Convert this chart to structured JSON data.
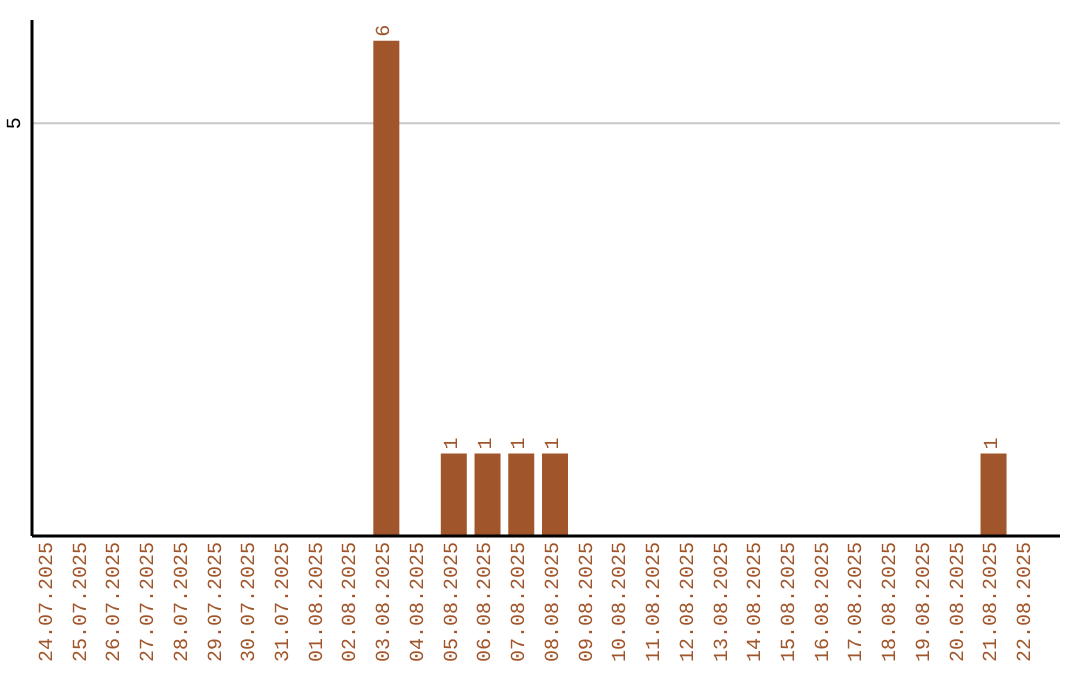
{
  "chart_data": {
    "type": "bar",
    "categories": [
      "24.07.2025",
      "25.07.2025",
      "26.07.2025",
      "27.07.2025",
      "28.07.2025",
      "29.07.2025",
      "30.07.2025",
      "31.07.2025",
      "01.08.2025",
      "02.08.2025",
      "03.08.2025",
      "04.08.2025",
      "05.08.2025",
      "06.08.2025",
      "07.08.2025",
      "08.08.2025",
      "09.08.2025",
      "10.08.2025",
      "11.08.2025",
      "12.08.2025",
      "13.08.2025",
      "14.08.2025",
      "15.08.2025",
      "16.08.2025",
      "17.08.2025",
      "18.08.2025",
      "19.08.2025",
      "20.08.2025",
      "21.08.2025",
      "22.08.2025"
    ],
    "values": [
      0,
      0,
      0,
      0,
      0,
      0,
      0,
      0,
      0,
      0,
      6,
      0,
      1,
      1,
      1,
      1,
      0,
      0,
      0,
      0,
      0,
      0,
      0,
      0,
      0,
      0,
      0,
      0,
      1,
      0
    ],
    "value_labels": [
      null,
      null,
      null,
      null,
      null,
      null,
      null,
      null,
      null,
      null,
      "6",
      null,
      "1",
      "1",
      "1",
      "1",
      null,
      null,
      null,
      null,
      null,
      null,
      null,
      null,
      null,
      null,
      null,
      null,
      "1",
      null
    ],
    "color": "#a0562a",
    "ylim": [
      0,
      6.25
    ],
    "yticks": [
      5
    ],
    "grid": "y"
  }
}
